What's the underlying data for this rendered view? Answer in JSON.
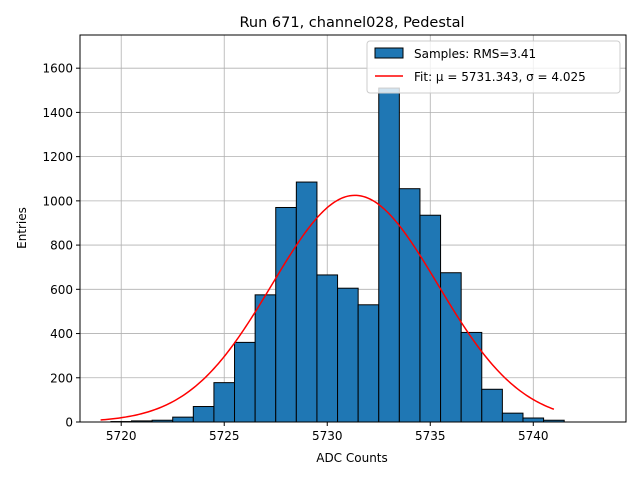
{
  "chart_data": {
    "type": "bar",
    "title": "Run 671, channel028, Pedestal",
    "xlabel": "ADC Counts",
    "ylabel": "Entries",
    "xlim": [
      5718,
      5744.5
    ],
    "ylim": [
      0,
      1750
    ],
    "xticks": [
      5720,
      5725,
      5730,
      5735,
      5740
    ],
    "yticks": [
      0,
      200,
      400,
      600,
      800,
      1000,
      1200,
      1400,
      1600
    ],
    "grid": true,
    "legend_position": "top-right",
    "histogram": {
      "name": "Samples: RMS=3.41",
      "color": "#1f77b4",
      "bin_width": 1,
      "bin_starts": [
        5719.5,
        5720.5,
        5721.5,
        5722.5,
        5723.5,
        5724.5,
        5725.5,
        5726.5,
        5727.5,
        5728.5,
        5729.5,
        5730.5,
        5731.5,
        5732.5,
        5733.5,
        5734.5,
        5735.5,
        5736.5,
        5737.5,
        5738.5,
        5739.5,
        5740.5
      ],
      "counts": [
        2,
        5,
        8,
        22,
        70,
        178,
        360,
        575,
        970,
        1085,
        665,
        605,
        530,
        1510,
        1055,
        935,
        675,
        405,
        148,
        40,
        18,
        8
      ]
    },
    "fit": {
      "name": "Fit: μ = 5731.343, σ = 4.025",
      "color": "#ff0000",
      "mu": 5731.343,
      "sigma": 4.025,
      "amplitude": 1025,
      "x_range": [
        5719,
        5741
      ]
    }
  }
}
